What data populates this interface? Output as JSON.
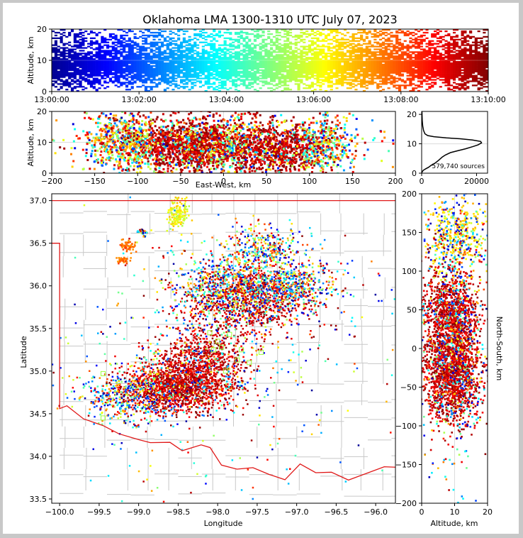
{
  "title": "Oklahoma LMA 1300-1310 UTC July 07, 2023",
  "colors": {
    "state_border": "#e01818",
    "county_lines": "#c8c8c8",
    "grid": "#dcdcdc",
    "frame_bg": "#ffffff",
    "outer_bg": "#c8c8c8",
    "colormap": [
      "#00008f",
      "#0000ff",
      "#0080ff",
      "#00ffff",
      "#80ff80",
      "#ffff00",
      "#ff8000",
      "#ff0000",
      "#800000"
    ]
  },
  "panels": {
    "time_height": {
      "ylabel": "Altitude, km",
      "yticks": [
        "0",
        "10",
        "20"
      ],
      "xticks": [
        "13:00:00",
        "13:02:00",
        "13:04:00",
        "13:06:00",
        "13:08:00",
        "13:10:00"
      ]
    },
    "ew_height": {
      "ylabel": "Altitude, km",
      "xlabel": "East-West, km",
      "yticks": [
        "0",
        "10",
        "20"
      ],
      "xticks": [
        "−200",
        "−150",
        "−100",
        "−50",
        "0",
        "50",
        "100",
        "150",
        "200"
      ]
    },
    "histogram": {
      "yticks": [
        "0",
        "10",
        "20"
      ],
      "xticks": [
        "0",
        "20000"
      ],
      "annotation": "579,740 sources"
    },
    "plan_view": {
      "xlabel": "Longitude",
      "ylabel": "Latitude",
      "xticks": [
        "−100.0",
        "−99.5",
        "−99.0",
        "−98.5",
        "−98.0",
        "−97.5",
        "−97.0",
        "−96.5",
        "−96.0"
      ],
      "yticks": [
        "33.5",
        "34.0",
        "34.5",
        "35.0",
        "35.5",
        "36.0",
        "36.5",
        "37.0"
      ]
    },
    "ns_height": {
      "xlabel": "Altitude, km",
      "ylabel": "North-South, km",
      "xticks": [
        "0",
        "10",
        "20"
      ],
      "yticks": [
        "200",
        "150",
        "100",
        "50",
        "0",
        "−50",
        "−100",
        "−150",
        "−200"
      ]
    }
  },
  "chart_data": [
    {
      "type": "scatter",
      "panel": "time_height",
      "xlabel": "",
      "ylabel": "Altitude, km",
      "xlim": [
        "13:00:00",
        "13:10:00"
      ],
      "ylim": [
        0,
        20
      ],
      "color_by": "time",
      "density_by_altitude_km": [
        [
          0,
          0.1
        ],
        [
          2,
          0.45
        ],
        [
          5,
          0.85
        ],
        [
          8,
          1.0
        ],
        [
          10,
          0.95
        ],
        [
          13,
          0.7
        ],
        [
          16,
          0.5
        ],
        [
          20,
          0.3
        ]
      ]
    },
    {
      "type": "scatter",
      "panel": "ew_height",
      "xlabel": "East-West, km",
      "ylabel": "Altitude, km",
      "xlim": [
        -200,
        200
      ],
      "ylim": [
        0,
        20
      ],
      "clusters": [
        {
          "x": -120,
          "y": 10,
          "sx": 20,
          "sy": 5,
          "n": 500
        },
        {
          "x": -40,
          "y": 9,
          "sx": 40,
          "sy": 4.5,
          "n": 1600
        },
        {
          "x": 55,
          "y": 8,
          "sx": 40,
          "sy": 4.5,
          "n": 1100
        },
        {
          "x": 120,
          "y": 10,
          "sx": 15,
          "sy": 5,
          "n": 250
        },
        {
          "x": 0,
          "y": 10,
          "sx": 110,
          "sy": 6,
          "n": 350
        }
      ]
    },
    {
      "type": "line",
      "panel": "histogram",
      "xlabel": "",
      "ylabel": "",
      "xlim": [
        0,
        24000
      ],
      "ylim": [
        0,
        21
      ],
      "points": [
        [
          0,
          0
        ],
        [
          200,
          0.5
        ],
        [
          600,
          1
        ],
        [
          1500,
          1.5
        ],
        [
          2500,
          2
        ],
        [
          3500,
          2.7
        ],
        [
          5000,
          3.5
        ],
        [
          6300,
          4.5
        ],
        [
          7500,
          5.5
        ],
        [
          8700,
          6.2
        ],
        [
          10500,
          7
        ],
        [
          13000,
          7.6
        ],
        [
          16000,
          8.3
        ],
        [
          18500,
          9
        ],
        [
          20500,
          9.6
        ],
        [
          21800,
          10.3
        ],
        [
          21500,
          10.8
        ],
        [
          18500,
          11.3
        ],
        [
          14000,
          11.7
        ],
        [
          9000,
          12
        ],
        [
          4500,
          12.4
        ],
        [
          2200,
          12.8
        ],
        [
          1200,
          13.4
        ],
        [
          700,
          14.5
        ],
        [
          400,
          16
        ],
        [
          200,
          18
        ],
        [
          100,
          21
        ]
      ],
      "annotation": "579,740 sources"
    },
    {
      "type": "scatter",
      "panel": "plan_view",
      "xlabel": "Longitude",
      "ylabel": "Latitude",
      "xlim": [
        -100.1,
        -95.75
      ],
      "ylim": [
        33.45,
        37.08
      ],
      "clusters": [
        {
          "x": -98.55,
          "y": 34.8,
          "sx": 0.32,
          "sy": 0.15,
          "n": 1300
        },
        {
          "x": -98.2,
          "y": 35.1,
          "sx": 0.3,
          "sy": 0.22,
          "n": 900
        },
        {
          "x": -97.6,
          "y": 35.85,
          "sx": 0.4,
          "sy": 0.2,
          "n": 1000
        },
        {
          "x": -97.1,
          "y": 36.0,
          "sx": 0.3,
          "sy": 0.15,
          "n": 500
        },
        {
          "x": -97.9,
          "y": 36.0,
          "sx": 0.35,
          "sy": 0.22,
          "n": 500
        },
        {
          "x": -97.4,
          "y": 36.45,
          "sx": 0.25,
          "sy": 0.12,
          "n": 300
        },
        {
          "x": -99.2,
          "y": 34.7,
          "sx": 0.3,
          "sy": 0.15,
          "n": 400
        },
        {
          "x": -98.5,
          "y": 36.85,
          "sx": 0.06,
          "sy": 0.1,
          "n": 150
        },
        {
          "x": -99.15,
          "y": 36.47,
          "sx": 0.05,
          "sy": 0.04,
          "n": 60
        },
        {
          "x": -99.2,
          "y": 36.3,
          "sx": 0.04,
          "sy": 0.02,
          "n": 40
        },
        {
          "x": -98.95,
          "y": 36.62,
          "sx": 0.03,
          "sy": 0.02,
          "n": 30
        },
        {
          "x": -98.0,
          "y": 35.2,
          "sx": 1.2,
          "sy": 0.8,
          "n": 450
        }
      ],
      "square_markers": [
        [
          -98.1,
          35.45
        ],
        [
          -98.0,
          35.35
        ],
        [
          -97.85,
          35.43
        ],
        [
          -97.95,
          35.28
        ],
        [
          -97.7,
          35.25
        ],
        [
          -97.6,
          35.1
        ],
        [
          -97.75,
          35.13
        ],
        [
          -98.05,
          35.25
        ],
        [
          -97.9,
          35.0
        ],
        [
          -97.45,
          35.22
        ],
        [
          -99.45,
          34.97
        ],
        [
          -99.45,
          34.45
        ]
      ]
    },
    {
      "type": "scatter",
      "panel": "ns_height",
      "xlabel": "Altitude, km",
      "ylabel": "North-South, km",
      "xlim": [
        0,
        20
      ],
      "ylim": [
        -200,
        200
      ],
      "clusters": [
        {
          "x": 9,
          "y": -35,
          "sx": 4.5,
          "sy": 30,
          "n": 1500
        },
        {
          "x": 9,
          "y": 45,
          "sx": 4.5,
          "sy": 28,
          "n": 1000
        },
        {
          "x": 10,
          "y": 145,
          "sx": 5,
          "sy": 25,
          "n": 500
        },
        {
          "x": 10,
          "y": 0,
          "sx": 6,
          "sy": 90,
          "n": 350
        }
      ]
    }
  ]
}
